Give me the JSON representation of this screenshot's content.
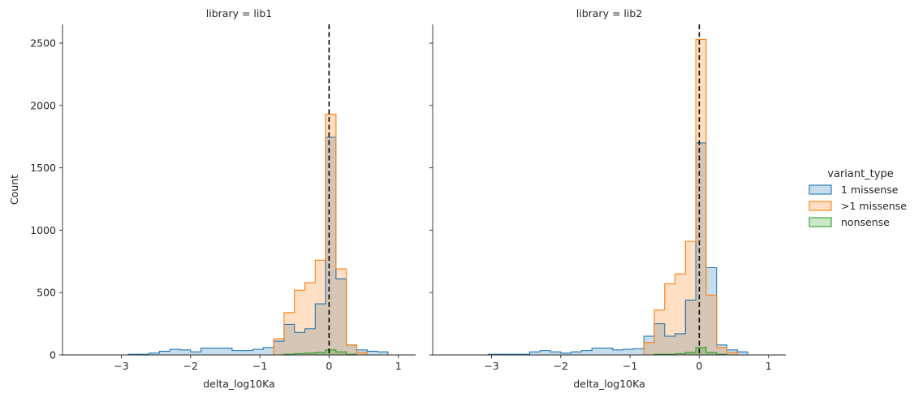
{
  "chart_data": [
    {
      "type": "histogram",
      "title": "library = lib1",
      "xlabel": "delta_log10Ka",
      "ylabel": "Count",
      "xlim": [
        -3.85,
        1.25
      ],
      "ylim": [
        0,
        2650
      ],
      "xticks": [
        "−3",
        "−2",
        "−1",
        "0",
        "1"
      ],
      "xtick_values": [
        -3,
        -2,
        -1,
        0,
        1
      ],
      "yticks": [
        "0",
        "500",
        "1000",
        "1500",
        "2000",
        "2500"
      ],
      "ytick_values": [
        0,
        500,
        1000,
        1500,
        2000,
        2500
      ],
      "reference_line": {
        "x": 0,
        "style": "dashed"
      },
      "bin_edges": [
        -3.65,
        -3.5,
        -3.35,
        -3.2,
        -3.05,
        -2.9,
        -2.75,
        -2.6,
        -2.45,
        -2.3,
        -2.15,
        -2.0,
        -1.85,
        -1.7,
        -1.55,
        -1.4,
        -1.25,
        -1.1,
        -0.95,
        -0.8,
        -0.65,
        -0.5,
        -0.35,
        -0.2,
        -0.05,
        0.1,
        0.25,
        0.4,
        0.55,
        0.7,
        0.85,
        1.0
      ],
      "series": [
        {
          "name": "1 missense",
          "values": [
            0,
            0,
            0,
            0,
            0,
            5,
            5,
            15,
            30,
            45,
            40,
            25,
            55,
            55,
            55,
            35,
            35,
            45,
            60,
            110,
            245,
            180,
            210,
            410,
            1745,
            610,
            80,
            40,
            30,
            25,
            0
          ]
        },
        {
          "name": ">1 missense",
          "values": [
            0,
            0,
            0,
            0,
            0,
            0,
            0,
            0,
            0,
            0,
            0,
            0,
            0,
            0,
            0,
            0,
            0,
            0,
            0,
            130,
            340,
            520,
            580,
            760,
            1930,
            690,
            80,
            20,
            0,
            0,
            0
          ]
        },
        {
          "name": "nonsense",
          "values": [
            0,
            0,
            0,
            0,
            0,
            0,
            0,
            0,
            0,
            0,
            0,
            0,
            0,
            0,
            0,
            0,
            0,
            0,
            0,
            0,
            5,
            10,
            15,
            20,
            40,
            25,
            5,
            0,
            0,
            0,
            0
          ]
        }
      ]
    },
    {
      "type": "histogram",
      "title": "library = lib2",
      "xlabel": "delta_log10Ka",
      "ylabel": "",
      "xlim": [
        -3.85,
        1.25
      ],
      "ylim": [
        0,
        2650
      ],
      "xticks": [
        "−3",
        "−2",
        "−1",
        "0",
        "1"
      ],
      "xtick_values": [
        -3,
        -2,
        -1,
        0,
        1
      ],
      "yticks": [],
      "ytick_values": [
        0,
        500,
        1000,
        1500,
        2000,
        2500
      ],
      "reference_line": {
        "x": 0,
        "style": "dashed"
      },
      "bin_edges": [
        -3.65,
        -3.5,
        -3.35,
        -3.2,
        -3.05,
        -2.9,
        -2.75,
        -2.6,
        -2.45,
        -2.3,
        -2.15,
        -2.0,
        -1.85,
        -1.7,
        -1.55,
        -1.4,
        -1.25,
        -1.1,
        -0.95,
        -0.8,
        -0.65,
        -0.5,
        -0.35,
        -0.2,
        -0.05,
        0.1,
        0.25,
        0.4,
        0.55,
        0.7,
        0.85,
        1.0
      ],
      "series": [
        {
          "name": "1 missense",
          "values": [
            0,
            0,
            0,
            0,
            5,
            5,
            5,
            5,
            25,
            35,
            25,
            15,
            25,
            35,
            55,
            55,
            40,
            45,
            50,
            150,
            250,
            150,
            170,
            440,
            1700,
            700,
            80,
            40,
            25,
            0,
            0
          ]
        },
        {
          "name": ">1 missense",
          "values": [
            0,
            0,
            0,
            0,
            0,
            0,
            0,
            0,
            0,
            0,
            0,
            0,
            0,
            0,
            0,
            0,
            0,
            0,
            0,
            100,
            360,
            570,
            650,
            910,
            2530,
            480,
            60,
            20,
            0,
            0,
            0
          ]
        },
        {
          "name": "nonsense",
          "values": [
            0,
            0,
            0,
            0,
            0,
            0,
            0,
            0,
            0,
            0,
            0,
            0,
            0,
            0,
            0,
            0,
            0,
            0,
            0,
            0,
            5,
            5,
            10,
            20,
            60,
            20,
            5,
            0,
            0,
            0,
            0
          ]
        }
      ]
    }
  ],
  "legend": {
    "title": "variant_type",
    "placement": "right",
    "items": [
      {
        "label": "1 missense",
        "fill": "#1f77b4",
        "edge": "#1f77b4"
      },
      {
        "label": ">1 missense",
        "fill": "#ff7f0e",
        "edge": "#ff7f0e"
      },
      {
        "label": "nonsense",
        "fill": "#2ca02c",
        "edge": "#2ca02c"
      }
    ]
  },
  "colors": {
    "1 missense": "#1f77b4",
    ">1 missense": "#ff7f0e",
    "nonsense": "#2ca02c",
    "axis": "#262626",
    "reference": "#000000"
  }
}
